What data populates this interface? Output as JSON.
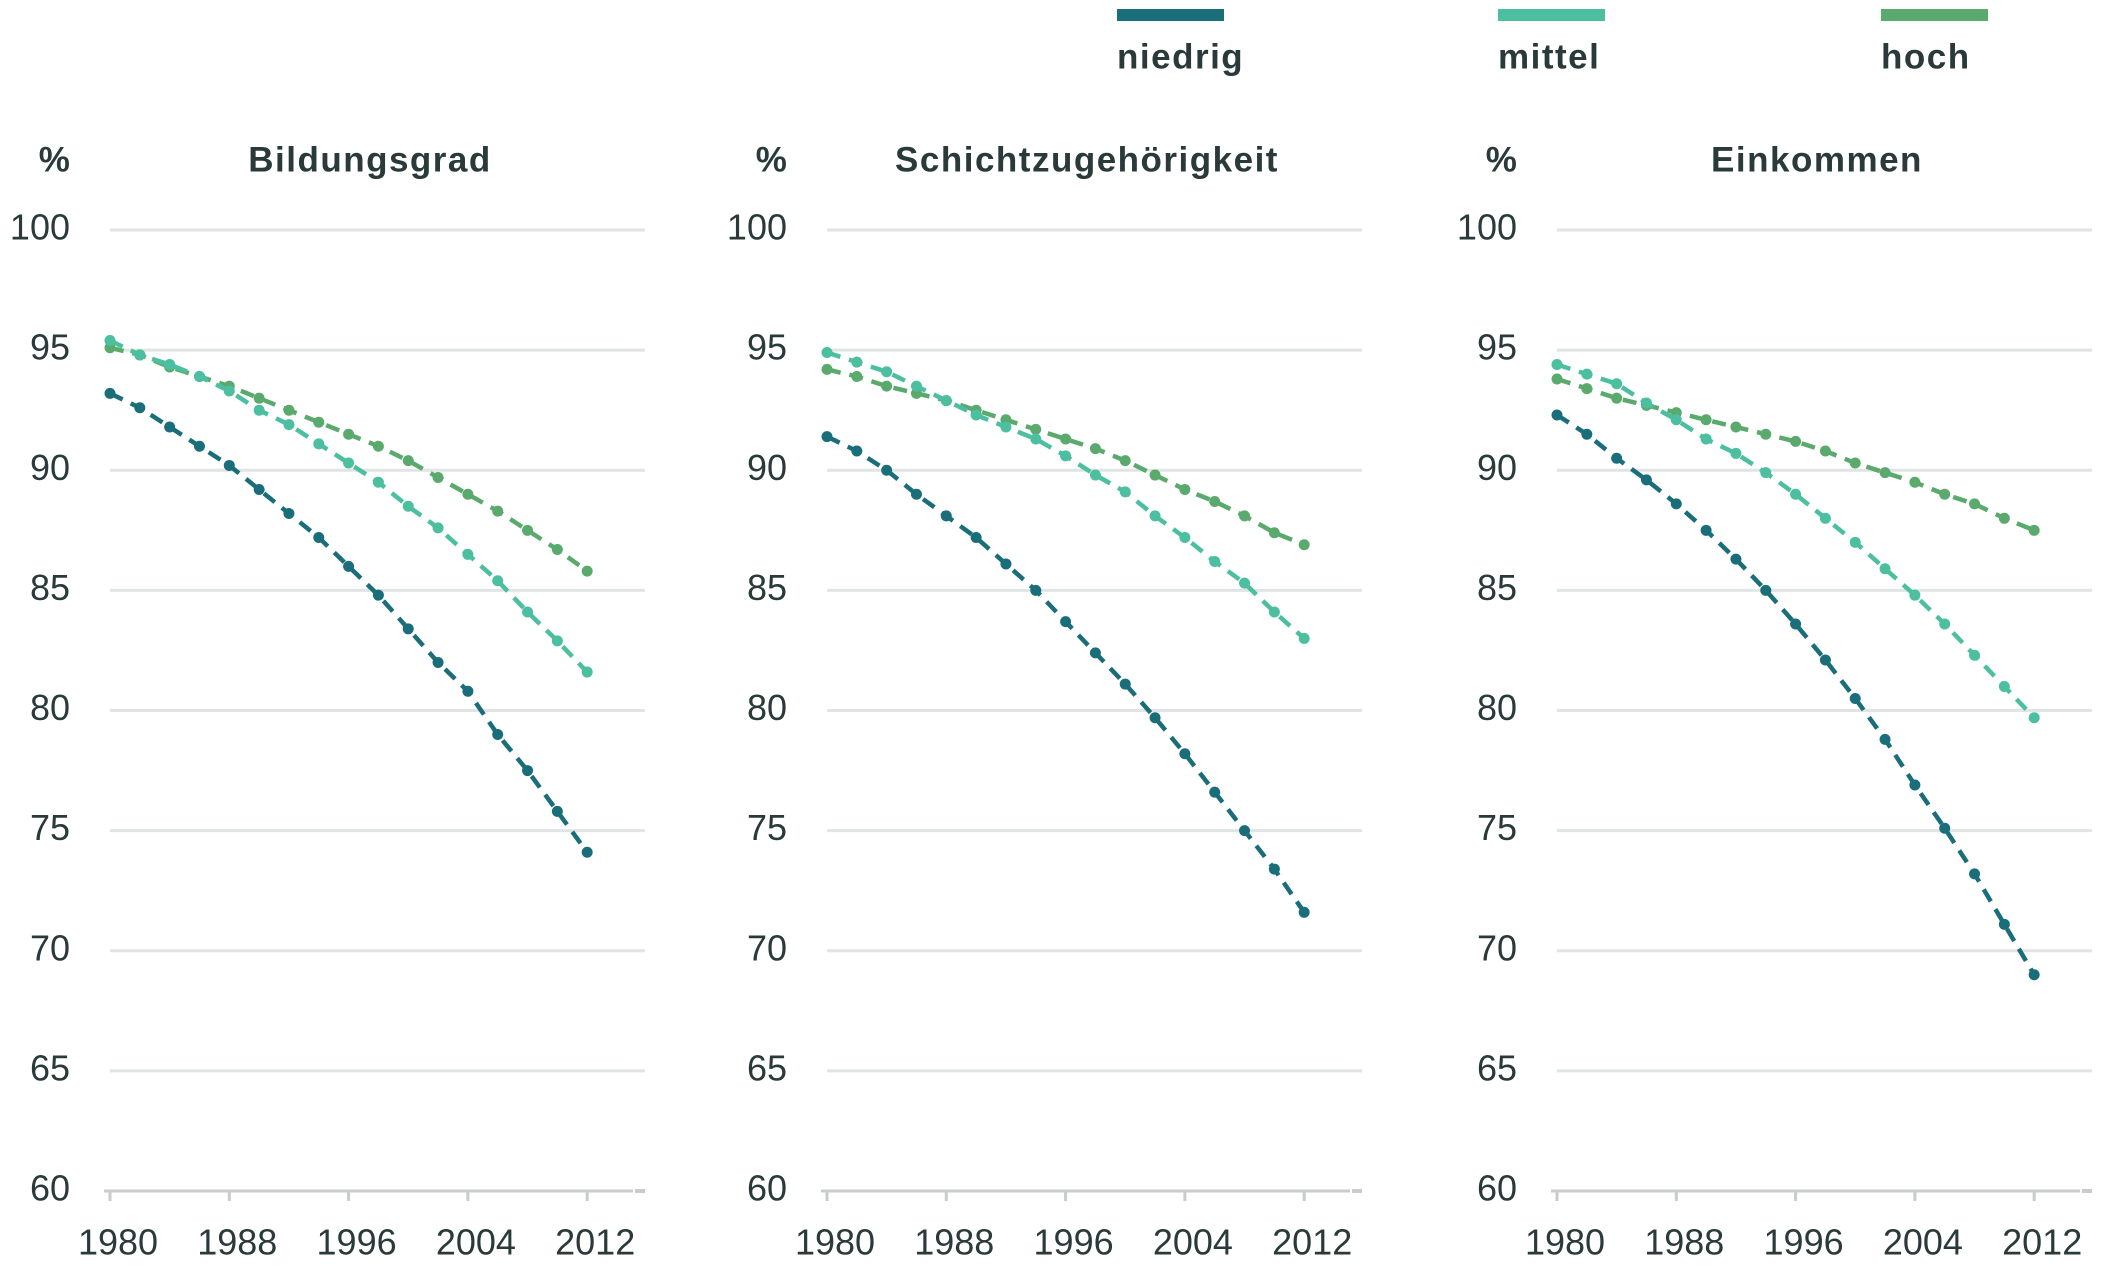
{
  "chart_data": [
    {
      "type": "line",
      "title": "Bildungsgrad",
      "ylabel": "%",
      "x": [
        1980,
        1982,
        1984,
        1986,
        1988,
        1990,
        1992,
        1994,
        1996,
        1998,
        2000,
        2002,
        2004,
        2006,
        2008,
        2010,
        2012
      ],
      "series": [
        {
          "name": "niedrig",
          "color": "#1a6e7a",
          "values": [
            93.2,
            92.6,
            91.8,
            91.0,
            90.2,
            89.2,
            88.2,
            87.2,
            86.0,
            84.8,
            83.4,
            82.0,
            80.8,
            79.0,
            77.5,
            75.8,
            74.1
          ]
        },
        {
          "name": "mittel",
          "color": "#4bbf9f",
          "values": [
            95.4,
            94.8,
            94.4,
            93.9,
            93.3,
            92.5,
            91.9,
            91.1,
            90.3,
            89.5,
            88.5,
            87.6,
            86.5,
            85.4,
            84.1,
            82.9,
            81.6
          ]
        },
        {
          "name": "hoch",
          "color": "#5aaa6e",
          "values": [
            95.1,
            94.8,
            94.3,
            93.9,
            93.5,
            93.0,
            92.5,
            92.0,
            91.5,
            91.0,
            90.4,
            89.7,
            89.0,
            88.3,
            87.5,
            86.7,
            85.8
          ]
        }
      ],
      "xlim": [
        1980,
        2014
      ],
      "xticks": [
        1980,
        1988,
        1996,
        2004,
        2012
      ],
      "ylim": [
        60,
        100
      ],
      "yticks": [
        60,
        65,
        70,
        75,
        80,
        85,
        90,
        95,
        100
      ],
      "grid": true
    },
    {
      "type": "line",
      "title": "Schichtzugehörigkeit",
      "ylabel": "%",
      "x": [
        1980,
        1982,
        1984,
        1986,
        1988,
        1990,
        1992,
        1994,
        1996,
        1998,
        2000,
        2002,
        2004,
        2006,
        2008,
        2010,
        2012
      ],
      "series": [
        {
          "name": "niedrig",
          "color": "#1a6e7a",
          "values": [
            91.4,
            90.8,
            90.0,
            89.0,
            88.1,
            87.2,
            86.1,
            85.0,
            83.7,
            82.4,
            81.1,
            79.7,
            78.2,
            76.6,
            75.0,
            73.4,
            71.6
          ]
        },
        {
          "name": "mittel",
          "color": "#4bbf9f",
          "values": [
            94.9,
            94.5,
            94.1,
            93.5,
            92.9,
            92.3,
            91.8,
            91.3,
            90.6,
            89.8,
            89.1,
            88.1,
            87.2,
            86.2,
            85.3,
            84.1,
            83.0
          ]
        },
        {
          "name": "hoch",
          "color": "#5aaa6e",
          "values": [
            94.2,
            93.9,
            93.5,
            93.2,
            92.9,
            92.5,
            92.1,
            91.7,
            91.3,
            90.9,
            90.4,
            89.8,
            89.2,
            88.7,
            88.1,
            87.4,
            86.9
          ]
        }
      ],
      "xlim": [
        1980,
        2014
      ],
      "xticks": [
        1980,
        1988,
        1996,
        2004,
        2012
      ],
      "ylim": [
        60,
        100
      ],
      "yticks": [
        60,
        65,
        70,
        75,
        80,
        85,
        90,
        95,
        100
      ],
      "grid": true
    },
    {
      "type": "line",
      "title": "Einkommen",
      "ylabel": "%",
      "x": [
        1980,
        1982,
        1984,
        1986,
        1988,
        1990,
        1992,
        1994,
        1996,
        1998,
        2000,
        2002,
        2004,
        2006,
        2008,
        2010,
        2012
      ],
      "series": [
        {
          "name": "niedrig",
          "color": "#1a6e7a",
          "values": [
            92.3,
            91.5,
            90.5,
            89.6,
            88.6,
            87.5,
            86.3,
            85.0,
            83.6,
            82.1,
            80.5,
            78.8,
            76.9,
            75.1,
            73.2,
            71.1,
            69.0
          ]
        },
        {
          "name": "mittel",
          "color": "#4bbf9f",
          "values": [
            94.4,
            94.0,
            93.6,
            92.8,
            92.1,
            91.3,
            90.7,
            89.9,
            89.0,
            88.0,
            87.0,
            85.9,
            84.8,
            83.6,
            82.3,
            81.0,
            79.7
          ]
        },
        {
          "name": "hoch",
          "color": "#5aaa6e",
          "values": [
            93.8,
            93.4,
            93.0,
            92.7,
            92.4,
            92.1,
            91.8,
            91.5,
            91.2,
            90.8,
            90.3,
            89.9,
            89.5,
            89.0,
            88.6,
            88.0,
            87.5
          ]
        }
      ],
      "xlim": [
        1980,
        2014
      ],
      "xticks": [
        1980,
        1988,
        1996,
        2004,
        2012
      ],
      "ylim": [
        60,
        100
      ],
      "yticks": [
        60,
        65,
        70,
        75,
        80,
        85,
        90,
        95,
        100
      ],
      "grid": true
    }
  ]
}
